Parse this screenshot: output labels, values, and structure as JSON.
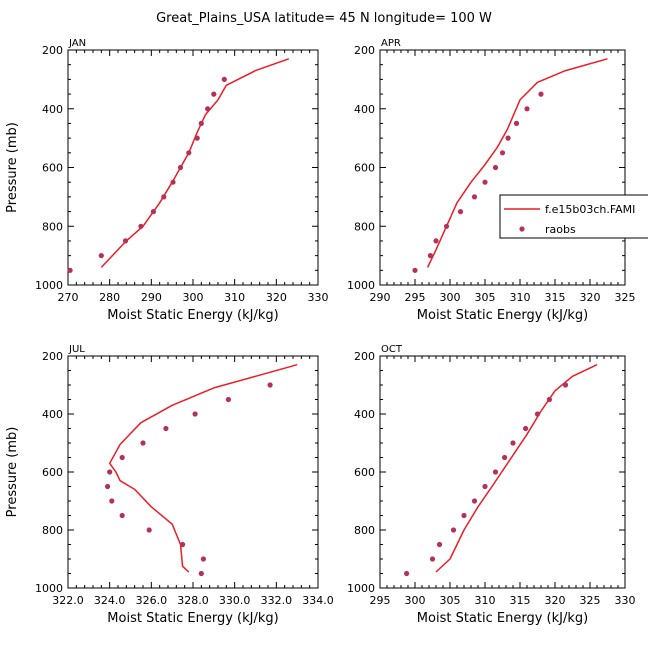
{
  "title": "Great_Plains_USA  latitude= 45 N longitude= 100 W",
  "legend": {
    "line_label": "f.e15b03ch.FAMI",
    "dots_label": "raobs"
  },
  "colors": {
    "model_line": "#ee1c25",
    "obs_dots": "#b5315c",
    "axis": "#000000"
  },
  "chart_data": [
    {
      "type": "line",
      "panel_label": "JAN",
      "title": "",
      "xlabel": "Moist Static Energy (kJ/kg)",
      "ylabel": "Pressure (mb)",
      "xlim": [
        270,
        330
      ],
      "ylim": [
        1000,
        200
      ],
      "xticks": [
        270,
        280,
        290,
        300,
        310,
        320,
        330
      ],
      "xtick_labels": [
        "270",
        "280",
        "290",
        "300",
        "310",
        "320",
        "330"
      ],
      "yticks": [
        200,
        400,
        600,
        800,
        1000
      ],
      "ytick_labels": [
        "200",
        "400",
        "600",
        "800",
        "1000"
      ],
      "series": [
        {
          "name": "f.e15b03ch.FAMI",
          "kind": "line",
          "x": [
            278,
            284,
            288,
            292,
            295,
            297,
            299,
            301,
            303,
            306,
            308,
            315,
            323
          ],
          "y": [
            940,
            850,
            800,
            720,
            650,
            600,
            550,
            480,
            420,
            370,
            320,
            270,
            230
          ]
        },
        {
          "name": "raobs",
          "kind": "points",
          "x": [
            270.5,
            278,
            283.8,
            287.5,
            290.5,
            293,
            295.2,
            297,
            299,
            301,
            302,
            303.5,
            305,
            307.5
          ],
          "y": [
            950,
            900,
            850,
            800,
            750,
            700,
            650,
            600,
            550,
            500,
            450,
            400,
            350,
            300
          ]
        }
      ]
    },
    {
      "type": "line",
      "panel_label": "APR",
      "title": "",
      "xlabel": "Moist Static Energy (kJ/kg)",
      "ylabel": "",
      "xlim": [
        290,
        325
      ],
      "ylim": [
        1000,
        200
      ],
      "xticks": [
        290,
        295,
        300,
        305,
        310,
        315,
        320,
        325
      ],
      "xtick_labels": [
        "290",
        "295",
        "300",
        "305",
        "310",
        "315",
        "320",
        "325"
      ],
      "yticks": [
        200,
        400,
        600,
        800,
        1000
      ],
      "ytick_labels": [
        "200",
        "400",
        "600",
        "800",
        "1000"
      ],
      "series": [
        {
          "name": "f.e15b03ch.FAMI",
          "kind": "line",
          "x": [
            296.8,
            298,
            299.5,
            301,
            303,
            305,
            306.8,
            308.2,
            310,
            312.5,
            316.5,
            322.5
          ],
          "y": [
            940,
            880,
            800,
            720,
            650,
            590,
            530,
            470,
            370,
            310,
            270,
            230
          ]
        },
        {
          "name": "raobs",
          "kind": "points",
          "x": [
            295,
            297.2,
            298,
            299.5,
            301.5,
            303.5,
            305,
            306.5,
            307.5,
            308.3,
            309.5,
            311,
            313
          ],
          "y": [
            950,
            900,
            850,
            800,
            750,
            700,
            650,
            600,
            550,
            500,
            450,
            400,
            350
          ]
        }
      ]
    },
    {
      "type": "line",
      "panel_label": "JUL",
      "title": "",
      "xlabel": "Moist Static Energy (kJ/kg)",
      "ylabel": "Pressure (mb)",
      "xlim": [
        322,
        334
      ],
      "ylim": [
        1000,
        200
      ],
      "xticks": [
        322,
        324,
        326,
        328,
        330,
        332,
        334
      ],
      "xtick_labels": [
        "322.0",
        "324.0",
        "326.0",
        "328.0",
        "330.0",
        "332.0",
        "334.0"
      ],
      "yticks": [
        200,
        400,
        600,
        800,
        1000
      ],
      "ytick_labels": [
        "200",
        "400",
        "600",
        "800",
        "1000"
      ],
      "series": [
        {
          "name": "f.e15b03ch.FAMI",
          "kind": "line",
          "x": [
            327.8,
            327.5,
            327.4,
            327.0,
            326.0,
            325.2,
            324.5,
            324.3,
            324.0,
            324.5,
            325.5,
            327.0,
            329.0,
            331.0,
            333.0
          ],
          "y": [
            945,
            925,
            850,
            780,
            720,
            660,
            630,
            600,
            570,
            505,
            430,
            370,
            310,
            270,
            230
          ]
        },
        {
          "name": "raobs",
          "kind": "points",
          "x": [
            328.4,
            328.5,
            327.5,
            325.9,
            324.6,
            324.1,
            323.9,
            324.0,
            324.6,
            325.6,
            326.7,
            328.1,
            329.7,
            331.7
          ],
          "y": [
            950,
            900,
            850,
            800,
            750,
            700,
            650,
            600,
            550,
            500,
            450,
            400,
            350,
            300
          ]
        }
      ]
    },
    {
      "type": "line",
      "panel_label": "OCT",
      "title": "",
      "xlabel": "Moist Static Energy (kJ/kg)",
      "ylabel": "",
      "xlim": [
        295,
        330
      ],
      "ylim": [
        1000,
        200
      ],
      "xticks": [
        295,
        300,
        305,
        310,
        315,
        320,
        325,
        330
      ],
      "xtick_labels": [
        "295",
        "300",
        "305",
        "310",
        "315",
        "320",
        "325",
        "330"
      ],
      "yticks": [
        200,
        400,
        600,
        800,
        1000
      ],
      "ytick_labels": [
        "200",
        "400",
        "600",
        "800",
        "1000"
      ],
      "series": [
        {
          "name": "f.e15b03ch.FAMI",
          "kind": "line",
          "x": [
            303,
            305,
            307,
            309,
            311,
            313.5,
            316,
            318,
            320,
            322.5,
            326
          ],
          "y": [
            945,
            900,
            800,
            720,
            650,
            560,
            470,
            390,
            320,
            270,
            230
          ]
        },
        {
          "name": "raobs",
          "kind": "points",
          "x": [
            298.8,
            302.5,
            303.5,
            305.5,
            307,
            308.5,
            310,
            311.5,
            312.8,
            314,
            315.8,
            317.5,
            319.2,
            321.5
          ],
          "y": [
            950,
            900,
            850,
            800,
            750,
            700,
            650,
            600,
            550,
            500,
            450,
            400,
            350,
            300
          ]
        }
      ]
    }
  ]
}
